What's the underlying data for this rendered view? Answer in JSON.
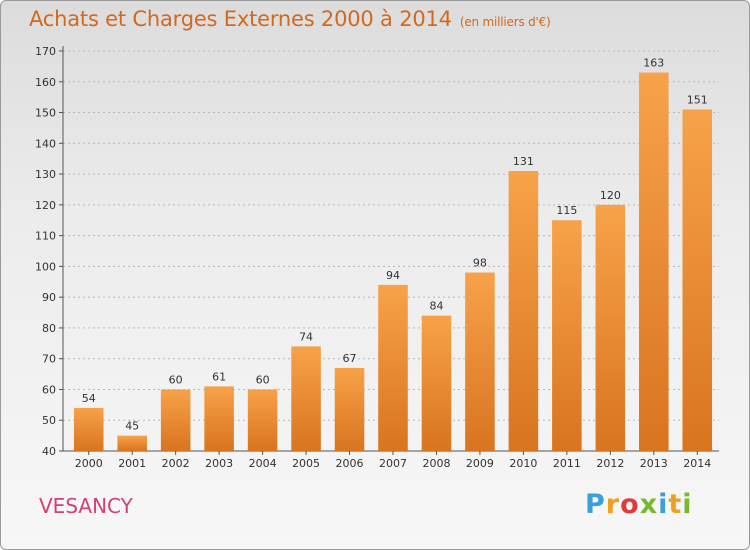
{
  "header": {
    "title": "Achats et Charges Externes 2000 à 2014",
    "subtitle": "(en milliers d'€)"
  },
  "footer": {
    "commune": "VESANCY",
    "logo_letters": [
      "P",
      "r",
      "o",
      "x",
      "i",
      "t",
      "i"
    ],
    "logo_colors": [
      "#3aa0d8",
      "#f0a020",
      "#e03a3a",
      "#7ab82e",
      "#3aa0d8",
      "#f0a020",
      "#7ab82e"
    ]
  },
  "chart_data": {
    "type": "bar",
    "title": "Achats et Charges Externes 2000 à 2014",
    "subtitle": "(en milliers d'€)",
    "categories": [
      "2000",
      "2001",
      "2002",
      "2003",
      "2004",
      "2005",
      "2006",
      "2007",
      "2008",
      "2009",
      "2010",
      "2011",
      "2012",
      "2013",
      "2014"
    ],
    "values": [
      54,
      45,
      60,
      61,
      60,
      74,
      67,
      94,
      84,
      98,
      131,
      115,
      120,
      163,
      151
    ],
    "ylim": [
      40,
      170
    ],
    "yticks": [
      40,
      50,
      60,
      70,
      80,
      90,
      100,
      110,
      120,
      130,
      140,
      150,
      160,
      170
    ],
    "grid": true,
    "bar_color_top": "#f7a24a",
    "bar_color_bottom": "#d9741f",
    "data_labels": true
  }
}
